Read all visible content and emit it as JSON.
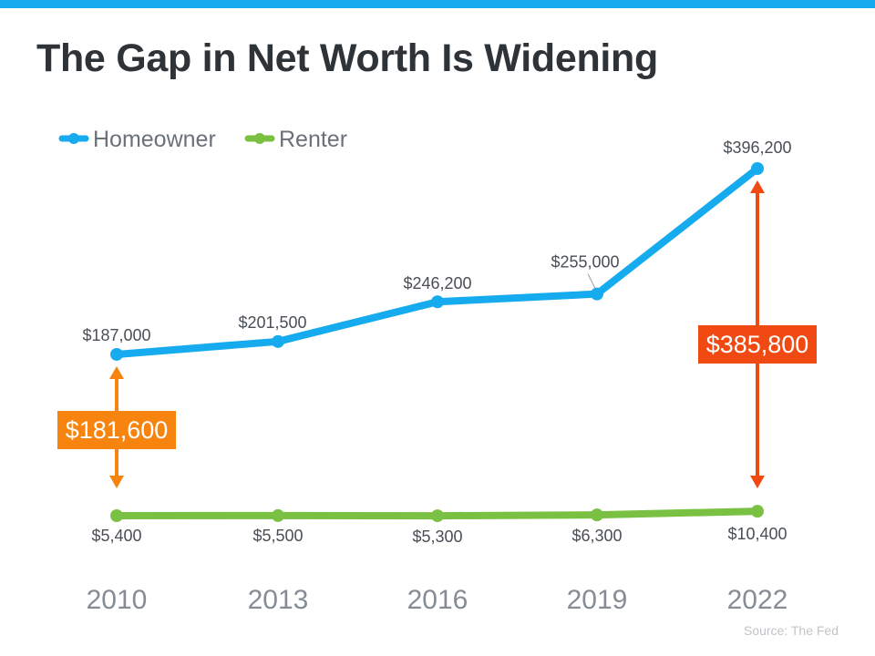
{
  "title": "The Gap in Net Worth Is Widening",
  "source": "Source: The Fed",
  "colors": {
    "homeowner": "#16aaee",
    "renter": "#7ac143",
    "gap_2010": "#f7840f",
    "gap_2022": "#f04a12",
    "top_bar": "#16aaee"
  },
  "chart_data": {
    "type": "line",
    "title": "The Gap in Net Worth Is Widening",
    "x": [
      "2010",
      "2013",
      "2016",
      "2019",
      "2022"
    ],
    "series": [
      {
        "name": "Homeowner",
        "values": [
          187000,
          201500,
          246200,
          255000,
          396200
        ],
        "labels": [
          "$187,000",
          "$201,500",
          "$246,200",
          "$255,000",
          "$396,200"
        ]
      },
      {
        "name": "Renter",
        "values": [
          5400,
          5500,
          5300,
          6300,
          10400
        ],
        "labels": [
          "$5,400",
          "$5,500",
          "$5,300",
          "$6,300",
          "$10,400"
        ]
      }
    ],
    "annotations": [
      {
        "year": "2010",
        "text": "$181,600",
        "value": 181600
      },
      {
        "year": "2022",
        "text": "$385,800",
        "value": 385800
      }
    ],
    "legend": "top-left",
    "grid": false,
    "xlabel": "",
    "ylabel": ""
  }
}
